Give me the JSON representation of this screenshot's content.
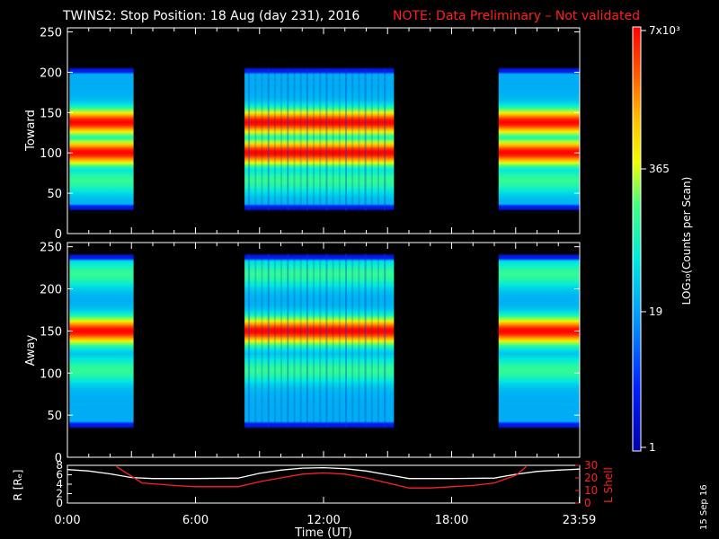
{
  "title": "TWINS2: Stop Position: 18 Aug (day 231), 2016",
  "note": "NOTE: Data Preliminary – Not validated",
  "date_stamp": "15 Sep 16",
  "colors": {
    "background": "#000000",
    "axes": "#ffffff",
    "note": "#ff2020",
    "r_line": "#ffffff",
    "lshell_line": "#ff2020"
  },
  "chart_data": [
    {
      "type": "heatmap",
      "ylabel": "Toward",
      "ylim": [
        0,
        255
      ],
      "yticks": [
        0,
        50,
        100,
        150,
        200,
        250
      ],
      "x_hours": [
        0,
        24
      ],
      "data_intervals_hours": [
        [
          0.1,
          3.1
        ],
        [
          8.3,
          15.3
        ],
        [
          20.2,
          23.98
        ]
      ],
      "occupied_range": [
        28,
        205
      ],
      "bands": [
        {
          "center": 100,
          "level": "high"
        },
        {
          "center": 138,
          "level": "high"
        },
        {
          "center": 65,
          "level": "medium"
        },
        {
          "center": 30,
          "level": "low-edge"
        },
        {
          "center": 204,
          "level": "low-edge"
        }
      ]
    },
    {
      "type": "heatmap",
      "ylabel": "Away",
      "ylim": [
        0,
        255
      ],
      "yticks": [
        0,
        50,
        100,
        150,
        200,
        250
      ],
      "x_hours": [
        0,
        24
      ],
      "data_intervals_hours": [
        [
          0.1,
          3.1
        ],
        [
          8.3,
          15.3
        ],
        [
          20.2,
          23.98
        ]
      ],
      "occupied_range": [
        35,
        242
      ],
      "bands": [
        {
          "center": 150,
          "level": "high"
        },
        {
          "center": 103,
          "level": "medium"
        },
        {
          "center": 218,
          "level": "medium"
        },
        {
          "center": 38,
          "level": "low-edge"
        },
        {
          "center": 240,
          "level": "low-edge"
        }
      ]
    },
    {
      "type": "line",
      "ylabel_left": "R [Rₑ]",
      "ylabel_right": "L Shell",
      "xlabel": "Time (UT)",
      "xticks": [
        "0:00",
        "6:00",
        "12:00",
        "18:00",
        "23:59"
      ],
      "xtick_hours": [
        0,
        6,
        12,
        18,
        23.98
      ],
      "ylim_left": [
        0,
        8
      ],
      "yticks_left": [
        0,
        2,
        4,
        6,
        8
      ],
      "ylim_right": [
        0,
        30
      ],
      "yticks_right": [
        0,
        10,
        20,
        30
      ],
      "series": [
        {
          "axis": "left",
          "x": [
            0,
            1,
            2,
            3,
            4,
            6,
            8,
            9,
            10,
            11,
            12,
            13,
            14,
            15,
            16,
            18,
            20,
            21,
            22,
            23,
            24
          ],
          "y": [
            7.1,
            6.8,
            6.2,
            5.4,
            5.2,
            5.2,
            5.3,
            6.3,
            7.0,
            7.4,
            7.5,
            7.3,
            6.8,
            6.0,
            5.2,
            5.2,
            5.3,
            6.1,
            6.7,
            7.0,
            7.2
          ]
        },
        {
          "axis": "right",
          "x": [
            2.3,
            3.5,
            5,
            6,
            8,
            9,
            10,
            11,
            12,
            13,
            14,
            15,
            16,
            17,
            18,
            19,
            20,
            21,
            21.5
          ],
          "y": [
            29,
            16,
            14,
            13,
            13,
            17,
            20,
            23,
            24,
            23,
            20,
            16,
            12,
            12,
            13,
            14,
            16,
            22,
            29
          ]
        }
      ]
    }
  ],
  "colorbar": {
    "label": "LOG₁₀(Counts per Scan)",
    "ticks": [
      "7x10³",
      "365",
      "19",
      "1"
    ]
  }
}
